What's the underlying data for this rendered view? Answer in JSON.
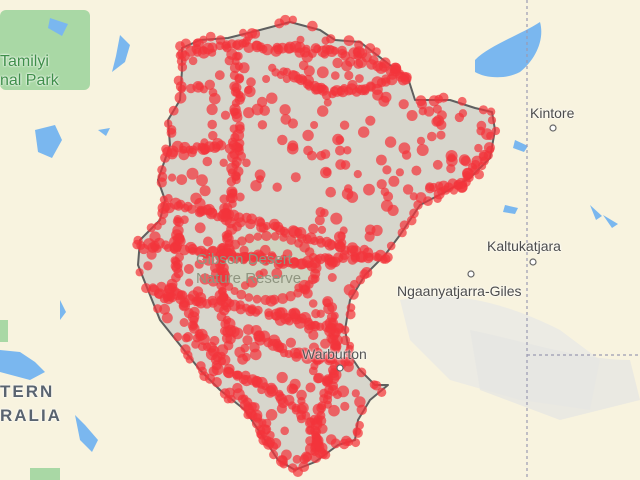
{
  "labels": {
    "park_line1": "Tamilyi",
    "park_line2": "nal Park",
    "kintore": "Kintore",
    "kaltukatjara": "Kaltukatjara",
    "ngaanyatjarra": "Ngaanyatjarra-Giles",
    "reserve_line1": "Gibson Desert",
    "reserve_line2": "Nature Reserve",
    "warburton": "Warburton",
    "state_line1": "TERN",
    "state_line2": "RALIA"
  },
  "colors": {
    "land": "#f8f3df",
    "region_fill": "#d7d6cc",
    "region_border": "#5f5f5f",
    "water": "#7ab7ef",
    "park_green": "#a9d8a5",
    "dots": "#f2343c"
  },
  "icons": [
    "town-marker-icon"
  ],
  "layers": {
    "region": "shaded-region-outline",
    "points": "red-point-cluster"
  }
}
